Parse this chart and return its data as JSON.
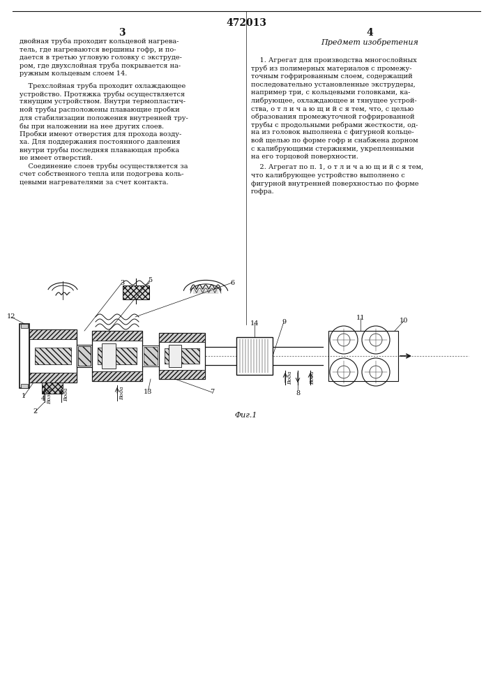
{
  "patent_number": "472013",
  "page_left": "3",
  "page_right": "4",
  "bg_color": "#ffffff",
  "text_color": "#000000",
  "fig_caption": "Φиг.1",
  "left_column_text": "двойная труба проходит кольцевой нагрева-\nтель, где нагреваются вершины гофр, и по-\nдается в третью угловую головку с экструде-\nром, где двухслойная труба покрывается на-\nружным кольцевым слоем 14.\n\n    Трехслойная труба проходит охлаждающее\nустройство. Протяжка трубы осуществляется\nтянущим устройством. Внутри термопластич-\nной трубы расположены плавающие пробки\nдля стабилизации положения внутренней тру-\nбы при наложении на нее других слоев.\nПробки имеют отверстия для прохода возду-\nха. Для поддержания постоянного давления\nвнутри трубы последняя плавающая пробка\nне имеет отверстий.\n    Соединение слоев трубы осуществляется за\nсчет собственного тепла или подогрева коль-\nцевыми нагревателями за счет контакта.",
  "right_column_header": "Предмет изобретения",
  "right_column_text_1": "    1. Агрегат для производства многослойных\nтруб из полимерных материалов с промежу-\nточным гофрированным слоем, содержащий\nпоследовательно установленные экструдеры,\nнапример три, с кольцевыми головками, ка-\nлибрующее, охлаждающее и тянущее устрой-\nства, о т л и ч а ю щ и й с я тем, что, с целью\nобразования промежуточной гофрированной\nтрубы с продольными ребрами жесткости, од-\nна из головок выполнена с фигурной кольце-\nвой щелью по форме гофр и снабжена дорном\nс калибрующими стержнями, укрепленными\nна его торцовой поверхности.",
  "right_column_text_2": "    2. Агрегат по п. 1, о т л и ч а ю щ и й с я тем,\nчто калибрующее устройство выполнено с\nфигурной внутренней поверхностью по форме\nгофра."
}
